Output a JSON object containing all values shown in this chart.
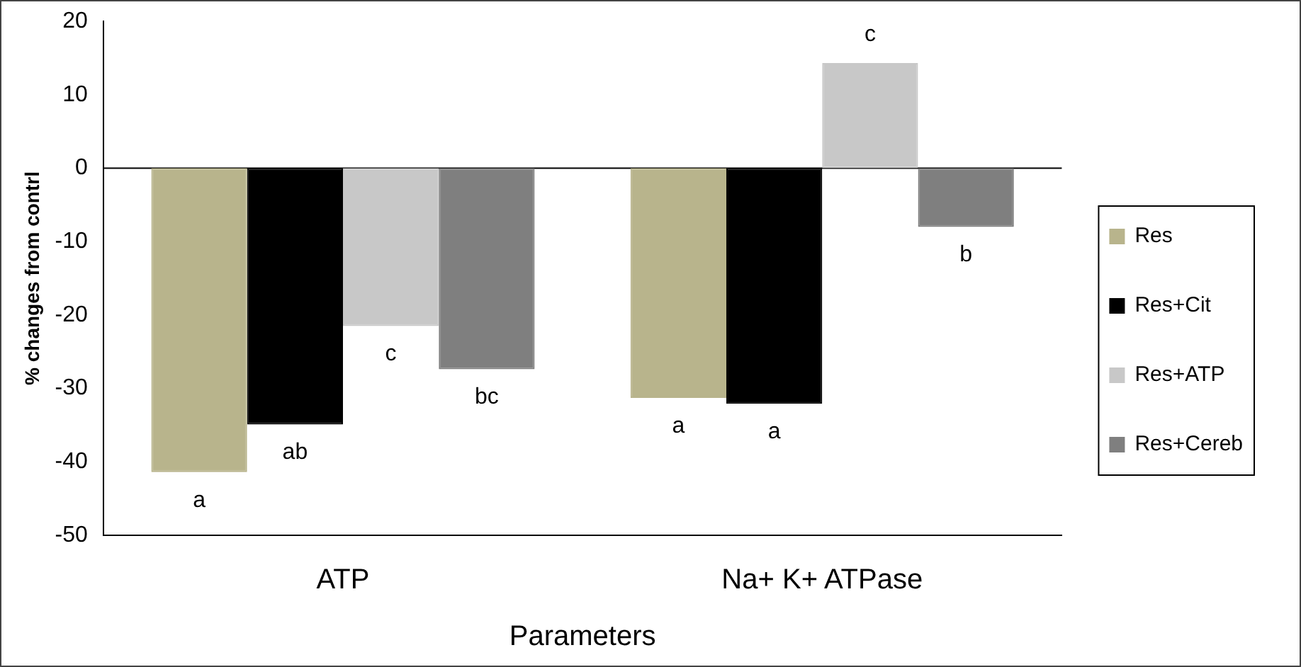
{
  "chart_data": {
    "type": "bar",
    "xlabel": "Parameters",
    "ylabel": "% changes from contrl",
    "categories": [
      "ATP",
      "Na+ K+ ATPase"
    ],
    "series": [
      {
        "name": "Res",
        "color": "#b8b48c",
        "values": [
          -41.4,
          -31.3
        ],
        "value_labels": [
          "a",
          "a"
        ]
      },
      {
        "name": "Res+Cit",
        "color": "#000000",
        "values": [
          -34.9,
          -32.1
        ],
        "value_labels": [
          "ab",
          "a"
        ]
      },
      {
        "name": "Res+ATP",
        "color": "#c8c8c8",
        "values": [
          -21.5,
          14.3
        ],
        "value_labels": [
          "c",
          "c"
        ]
      },
      {
        "name": "Res+Cereb",
        "color": "#7f7f7f",
        "values": [
          -27.4,
          -8.0
        ],
        "value_labels": [
          "bc",
          "b"
        ]
      }
    ],
    "ylim": [
      -50,
      20
    ],
    "yticks": [
      -50,
      -40,
      -30,
      -20,
      -10,
      0,
      10,
      20
    ],
    "ref_lines": [
      {
        "axis": "y",
        "value": 0,
        "label": null
      }
    ],
    "grid": false,
    "legend": "right"
  }
}
